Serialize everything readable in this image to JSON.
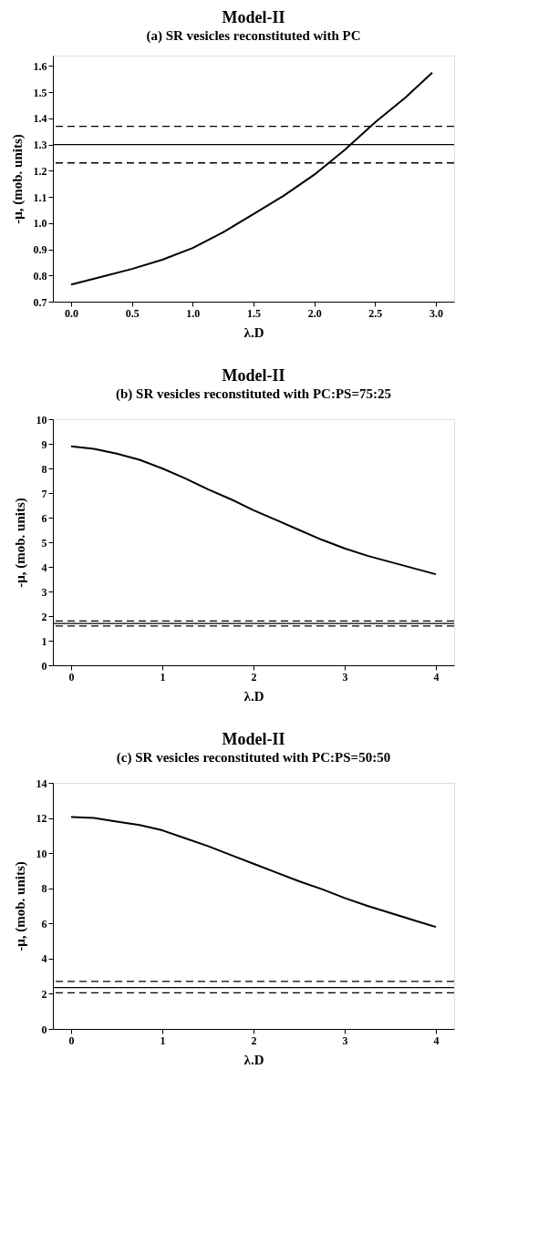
{
  "chart_data": [
    {
      "type": "line",
      "title": "Model-II",
      "subtitle": "(a) SR vesicles reconstituted with PC",
      "xlabel": "λ.D",
      "ylabel": "-μ, (mob. units)",
      "x": [
        0,
        0.25,
        0.5,
        0.75,
        1.0,
        1.25,
        1.5,
        1.75,
        2.0,
        2.25,
        2.5,
        2.75,
        2.97
      ],
      "series": [
        {
          "color": "#000000",
          "values": [
            0.765,
            0.795,
            0.825,
            0.86,
            0.905,
            0.965,
            1.035,
            1.105,
            1.185,
            1.28,
            1.385,
            1.48,
            1.575
          ]
        }
      ],
      "xlim": [
        -0.15,
        3.15
      ],
      "xticks": [
        {
          "value": 0,
          "label": "0.0"
        },
        0.5,
        {
          "value": 1,
          "label": "1.0"
        },
        1.5,
        {
          "value": 2,
          "label": "2.0"
        },
        2.5,
        {
          "value": 3,
          "label": "3.0"
        }
      ],
      "ylim": [
        0.7,
        1.64
      ],
      "yticks": [
        0.7,
        0.8,
        0.9,
        {
          "value": 1,
          "label": "1.0"
        },
        1.1,
        1.2,
        1.3,
        1.4,
        1.5,
        1.6
      ],
      "ref_lines": [
        {
          "axis": "y",
          "value": 1.37,
          "line_style": "dashed",
          "color": "#000000"
        },
        {
          "axis": "y",
          "value": 1.3,
          "line_style": "solid",
          "color": "#000000"
        },
        {
          "axis": "y",
          "value": 1.23,
          "line_style": "dashed",
          "color": "#000000"
        }
      ],
      "grid": false,
      "legend": false,
      "line_style": "solid",
      "marker": "none"
    },
    {
      "type": "line",
      "title": "Model-II",
      "subtitle": "(b) SR vesicles reconstituted with PC:PS=75:25",
      "xlabel": "λ.D",
      "ylabel": "-μ, (mob. units)",
      "x": [
        0,
        0.25,
        0.5,
        0.75,
        1.0,
        1.25,
        1.5,
        1.75,
        2.0,
        2.25,
        2.5,
        2.75,
        3.0,
        3.25,
        3.5,
        3.75,
        4.0
      ],
      "series": [
        {
          "color": "#000000",
          "values": [
            8.9,
            8.8,
            8.6,
            8.35,
            8.0,
            7.6,
            7.15,
            6.75,
            6.3,
            5.9,
            5.5,
            5.1,
            4.75,
            4.45,
            4.2,
            3.95,
            3.7
          ]
        }
      ],
      "xlim": [
        -0.2,
        4.2
      ],
      "xticks": [
        0,
        1,
        2,
        3,
        4
      ],
      "ylim": [
        0,
        10
      ],
      "yticks": [
        0,
        1,
        2,
        3,
        4,
        5,
        6,
        7,
        8,
        9,
        10
      ],
      "ref_lines": [
        {
          "axis": "y",
          "value": 1.8,
          "line_style": "dashed",
          "color": "#000000"
        },
        {
          "axis": "y",
          "value": 1.7,
          "line_style": "solid",
          "color": "#000000"
        },
        {
          "axis": "y",
          "value": 1.6,
          "line_style": "dashed",
          "color": "#000000"
        }
      ],
      "grid": false,
      "legend": false,
      "line_style": "solid",
      "marker": "none"
    },
    {
      "type": "line",
      "title": "Model-II",
      "subtitle": "(c) SR vesicles reconstituted with PC:PS=50:50",
      "xlabel": "λ.D",
      "ylabel": "-μ, (mob. units)",
      "x": [
        0,
        0.25,
        0.5,
        0.75,
        1.0,
        1.25,
        1.5,
        1.75,
        2.0,
        2.25,
        2.5,
        2.75,
        3.0,
        3.25,
        3.5,
        3.75,
        4.0
      ],
      "series": [
        {
          "color": "#000000",
          "values": [
            12.05,
            12.0,
            11.8,
            11.6,
            11.3,
            10.85,
            10.4,
            9.9,
            9.4,
            8.9,
            8.4,
            7.95,
            7.45,
            7.0,
            6.6,
            6.2,
            5.8
          ]
        }
      ],
      "xlim": [
        -0.2,
        4.2
      ],
      "xticks": [
        0,
        1,
        2,
        3,
        4
      ],
      "ylim": [
        0,
        14
      ],
      "yticks": [
        0,
        2,
        4,
        6,
        8,
        10,
        12,
        14
      ],
      "ref_lines": [
        {
          "axis": "y",
          "value": 2.7,
          "line_style": "dashed",
          "color": "#000000"
        },
        {
          "axis": "y",
          "value": 2.35,
          "line_style": "solid",
          "color": "#000000"
        },
        {
          "axis": "y",
          "value": 2.05,
          "line_style": "dashed",
          "color": "#000000"
        }
      ],
      "grid": false,
      "legend": false,
      "line_style": "solid",
      "marker": "none"
    }
  ]
}
